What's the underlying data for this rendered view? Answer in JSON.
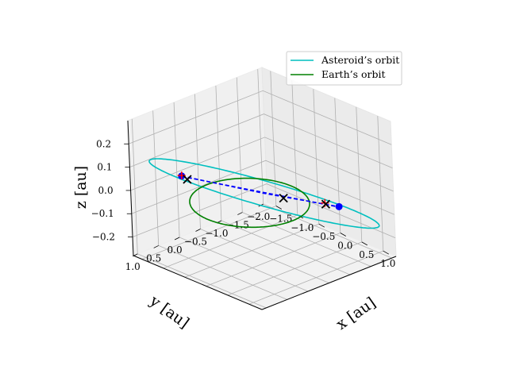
{
  "chart_data": {
    "type": "line",
    "projection": "3d",
    "title": "",
    "xlabel": "$x$ [au]",
    "ylabel": "$y$ [au]",
    "zlabel": "$z$ [au]",
    "xlabel_text": "x [au]",
    "ylabel_text": "y [au]",
    "zlabel_text": "z [au]",
    "xlim": [
      -1.7,
      1.3
    ],
    "ylim": [
      -2.1,
      1.1
    ],
    "zlim": [
      -0.28,
      0.3
    ],
    "x_ticks": [
      "−1.5",
      "−1.0",
      "−0.5",
      "0.0",
      "0.5",
      "1.0"
    ],
    "y_ticks": [
      "1.0",
      "0.5",
      "0.0",
      "−0.5",
      "−1.0",
      "−1.5",
      "−2.0"
    ],
    "z_ticks": [
      "0.2",
      "0.1",
      "0.0",
      "−0.1",
      "−0.2"
    ],
    "x_tick_values": [
      -1.5,
      -1.0,
      -0.5,
      0.0,
      0.5,
      1.0
    ],
    "y_tick_values": [
      1.0,
      0.5,
      0.0,
      -0.5,
      -1.0,
      -1.5,
      -2.0
    ],
    "z_tick_values": [
      0.2,
      0.1,
      0.0,
      -0.1,
      -0.2
    ],
    "grid": true,
    "legend_position": "top-right",
    "legend": [
      "Asteroid’s orbit",
      "Earth’s orbit"
    ],
    "series": [
      {
        "name": "Asteroid’s orbit",
        "kind": "ellipse",
        "color": "#00bfbf",
        "center": [
          -0.1,
          -0.45,
          0.0
        ],
        "a": 1.9,
        "b": 0.55,
        "rotation_deg": -48,
        "inclination_tilt": 0.14
      },
      {
        "name": "Earth’s orbit",
        "kind": "circle",
        "color": "#008000",
        "center": [
          0,
          0,
          0
        ],
        "radius": 1.0
      }
    ],
    "extra_lines": [
      {
        "kind": "dashed-path",
        "color": "#0000ff",
        "points": [
          [
            -0.86,
            0.72,
            0.1
          ],
          [
            -0.1,
            -0.45,
            0.0
          ],
          [
            0.55,
            -1.55,
            -0.085
          ]
        ]
      },
      {
        "kind": "dashed-path",
        "color": "#0000ff",
        "points": [
          [
            -0.86,
            0.72,
            0.098
          ],
          [
            0.55,
            -1.55,
            -0.087
          ]
        ]
      }
    ],
    "points": [
      {
        "label": "blue dot start",
        "marker": "dot",
        "color": "#0000ff",
        "xyz": [
          -0.86,
          0.72,
          0.1
        ]
      },
      {
        "label": "blue dot end",
        "marker": "dot",
        "color": "#0000ff",
        "xyz": [
          0.55,
          -1.55,
          -0.085
        ]
      },
      {
        "label": "red plus start",
        "marker": "plus",
        "color": "#ff0000",
        "xyz": [
          -0.84,
          0.74,
          0.105
        ]
      },
      {
        "label": "red plus end",
        "marker": "plus",
        "color": "#ff0000",
        "xyz": [
          0.42,
          -1.35,
          -0.065
        ]
      },
      {
        "label": "black x 1",
        "marker": "x",
        "color": "#000000",
        "xyz": [
          -0.8,
          0.65,
          0.085
        ]
      },
      {
        "label": "black x 2",
        "marker": "x",
        "color": "#000000",
        "xyz": [
          0.05,
          -0.75,
          -0.03
        ]
      },
      {
        "label": "black x 3",
        "marker": "x",
        "color": "#000000",
        "xyz": [
          0.43,
          -1.36,
          -0.07
        ]
      }
    ]
  }
}
